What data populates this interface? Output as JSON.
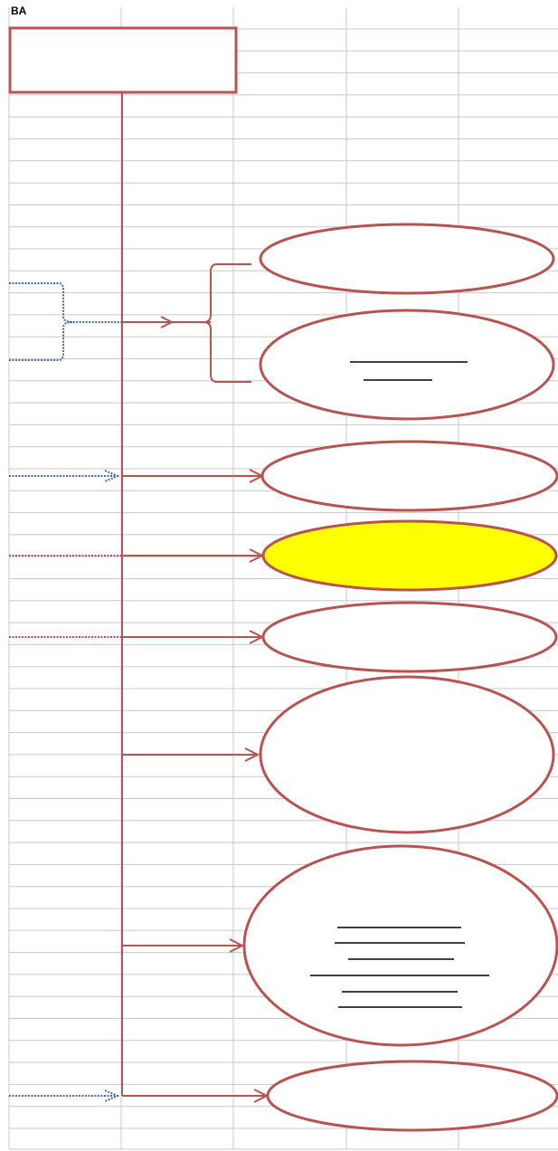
{
  "header": {
    "title": "BA"
  }
}
